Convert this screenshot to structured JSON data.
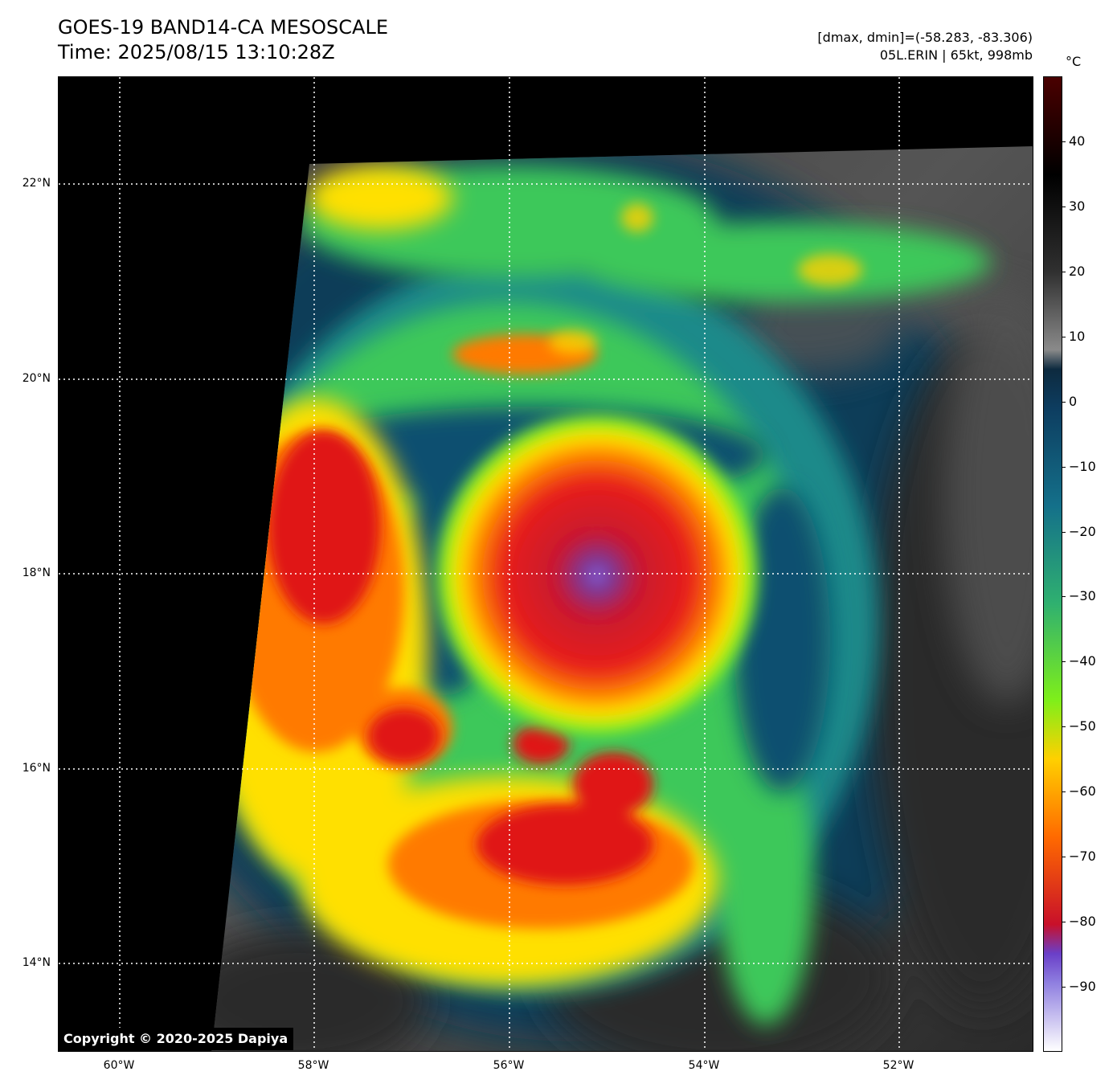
{
  "header": {
    "title": "GOES-19 BAND14-CA MESOSCALE",
    "time": "Time: 2025/08/15 13:10:28Z",
    "range_info": "[dmax, dmin]=(-58.283, -83.306)",
    "storm_info": "05L.ERIN | 65kt, 998mb"
  },
  "map": {
    "lat_labels": [
      "22°N",
      "20°N",
      "18°N",
      "16°N",
      "14°N"
    ],
    "lon_labels": [
      "60°W",
      "58°W",
      "56°W",
      "54°W",
      "52°W"
    ],
    "lat_range": [
      13.1,
      23.1
    ],
    "lon_range": [
      -60.6,
      -50.6
    ],
    "storm_center": {
      "lon": -55.1,
      "lat": 18.1
    },
    "copyright": "Copyright © 2020-2025 Dapiya"
  },
  "colorbar": {
    "unit": "°C",
    "ticks": [
      "40",
      "30",
      "20",
      "10",
      "0",
      "−10",
      "−20",
      "−30",
      "−40",
      "−50",
      "−60",
      "−70",
      "−80",
      "−90"
    ],
    "tick_values": [
      40,
      30,
      20,
      10,
      0,
      -10,
      -20,
      -30,
      -40,
      -50,
      -60,
      -70,
      -80,
      -90
    ],
    "range": [
      -100,
      50
    ],
    "colors": [
      "#ffffff",
      "#8f7fe0",
      "#6a3fc8",
      "#c8102a",
      "#ff6a00",
      "#ffd000",
      "#7fef1a",
      "#2fb070",
      "#14708a",
      "#0d3d60",
      "#0d2a3f",
      "#8a8a8a",
      "#303030",
      "#000000",
      "#4a0000"
    ]
  }
}
